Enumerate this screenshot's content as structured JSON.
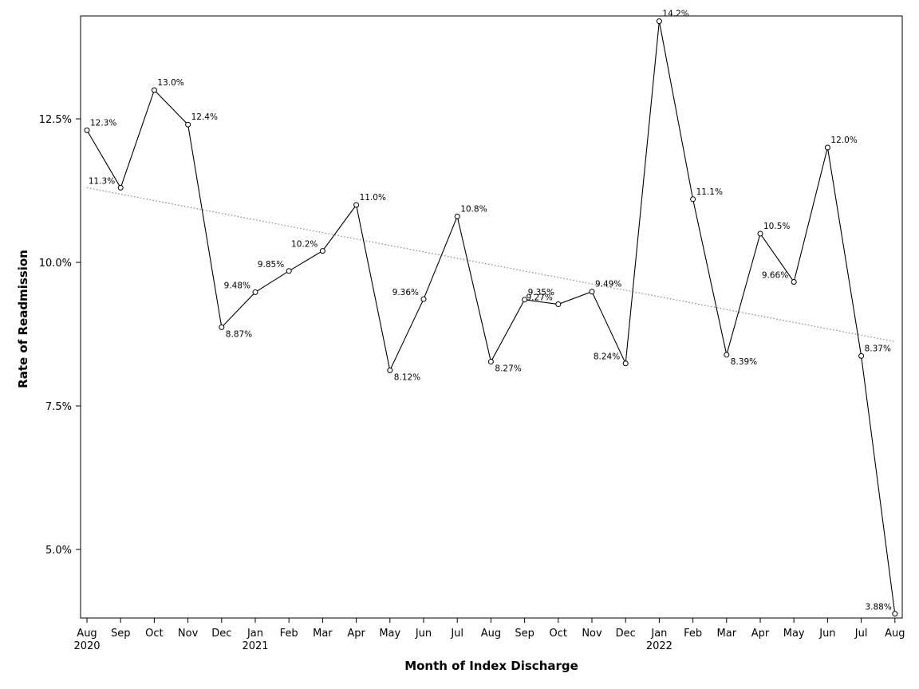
{
  "chart_data": {
    "type": "line",
    "title": "",
    "xlabel": "Month of Index Discharge",
    "ylabel": "Rate of Readmission",
    "ylim": [
      3.85,
      14.3
    ],
    "y_ticks": [
      5.0,
      7.5,
      10.0,
      12.5
    ],
    "y_tick_labels": [
      "5.0%",
      "7.5%",
      "10.0%",
      "12.5%"
    ],
    "grid": false,
    "legend": "none",
    "x_labels": [
      "Aug",
      "Sep",
      "Oct",
      "Nov",
      "Dec",
      "Jan",
      "Feb",
      "Mar",
      "Apr",
      "May",
      "Jun",
      "Jul",
      "Aug",
      "Sep",
      "Oct",
      "Nov",
      "Dec",
      "Jan",
      "Feb",
      "Mar",
      "Apr",
      "May",
      "Jun",
      "Jul",
      "Aug"
    ],
    "year_labels": [
      {
        "index": 0,
        "label": "2020"
      },
      {
        "index": 5,
        "label": "2021"
      },
      {
        "index": 17,
        "label": "2022"
      }
    ],
    "series": [
      {
        "values": [
          12.3,
          11.3,
          13.0,
          12.4,
          8.87,
          9.48,
          9.85,
          10.2,
          11.0,
          8.12,
          9.36,
          10.8,
          8.27,
          9.35,
          9.27,
          9.49,
          8.24,
          14.2,
          11.1,
          8.39,
          10.5,
          9.66,
          12.0,
          8.37,
          3.88
        ],
        "labels": [
          "12.3%",
          "11.3%",
          "13.0%",
          "12.4%",
          "8.87%",
          "9.48%",
          "9.85%",
          "10.2%",
          "11.0%",
          "8.12%",
          "9.36%",
          "10.8%",
          "8.27%",
          "9.35%",
          "9.27%",
          "9.49%",
          "8.24%",
          "14.2%",
          "11.1%",
          "8.39%",
          "10.5%",
          "9.66%",
          "12.0%",
          "8.37%",
          "3.88%"
        ],
        "color": "#000000"
      }
    ],
    "trend_line": {
      "start": 11.3,
      "end": 8.62,
      "style": "dotted",
      "color": "#888888"
    }
  }
}
